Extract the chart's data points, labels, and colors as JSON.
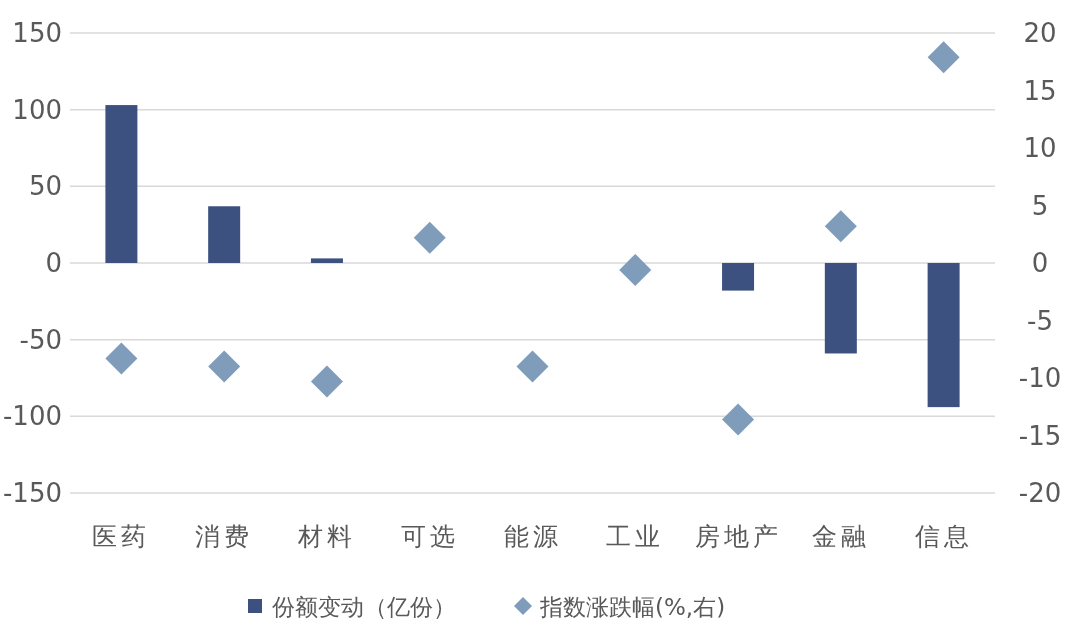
{
  "chart_data": {
    "type": "bar",
    "categories": [
      "医药",
      "消费",
      "材料",
      "可选",
      "能源",
      "工业",
      "房地产",
      "金融",
      "信息"
    ],
    "series": [
      {
        "name": "份额变动（亿份）",
        "color": "#3d5180",
        "values": [
          103,
          37,
          3,
          null,
          null,
          null,
          -18,
          -59,
          -94
        ]
      },
      {
        "name": "指数涨跌幅(%,右)",
        "type": "scatter",
        "axis": "y2",
        "marker": "diamond",
        "color": "#7f9cbb",
        "values": [
          -8.3,
          -9.0,
          -10.3,
          2.2,
          -9.0,
          -0.6,
          -13.6,
          3.2,
          17.9
        ]
      }
    ],
    "ylim": [
      -150,
      150
    ],
    "yticks": [
      -150,
      -100,
      -50,
      0,
      50,
      100,
      150
    ],
    "y2lim": [
      -20,
      20
    ],
    "y2ticks": [
      -20,
      -15,
      -10,
      -5,
      0,
      5,
      10,
      15,
      20
    ],
    "grid": "y",
    "legend": "bottom"
  }
}
